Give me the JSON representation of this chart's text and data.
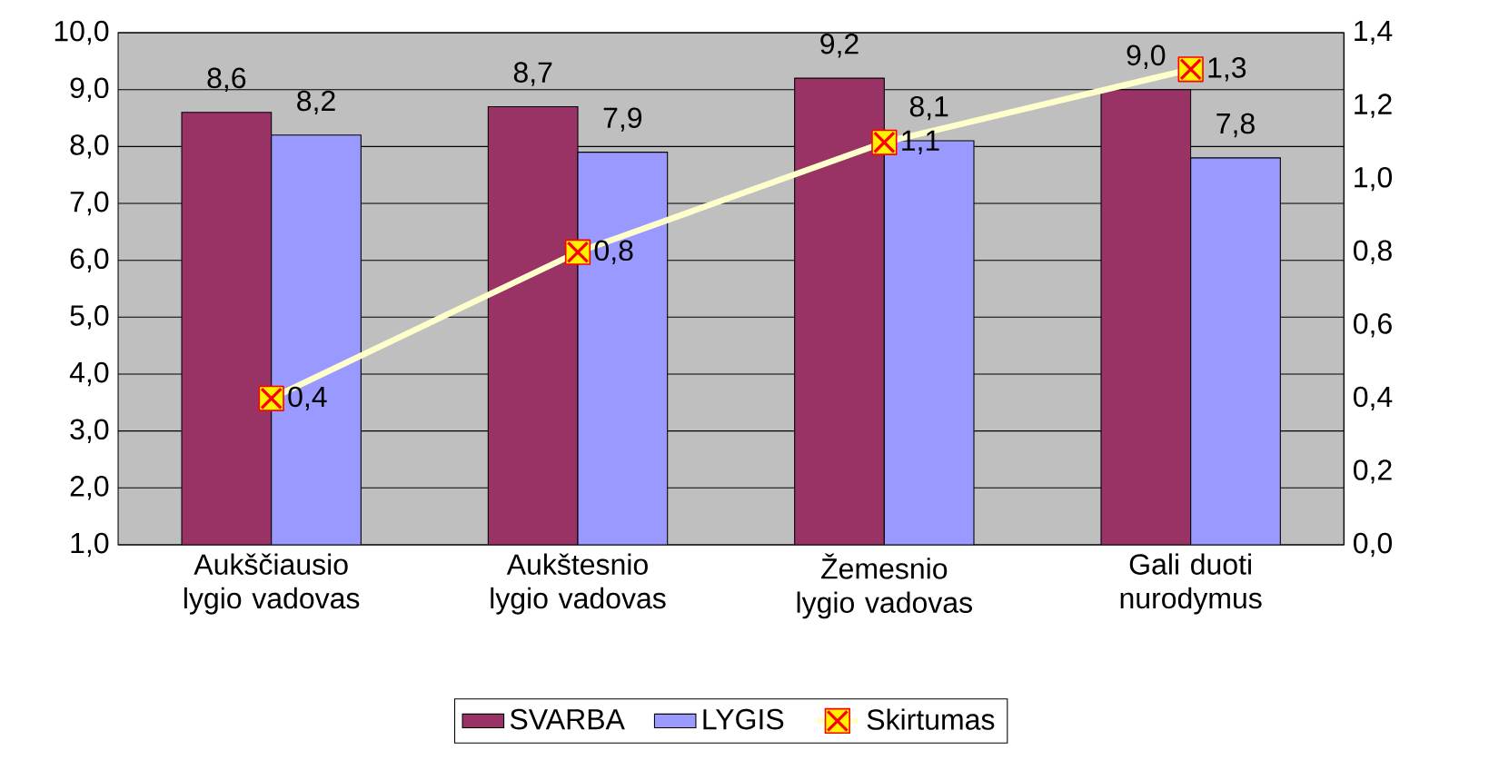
{
  "chart_data": {
    "type": "bar",
    "categories": [
      "Aukščiausio lygio vadovas",
      "Aukštesnio lygio vadovas",
      "Žemesnio lygio vadovas",
      "Gali duoti nurodymus"
    ],
    "series": [
      {
        "name": "SVARBA",
        "color": "#993366",
        "values": [
          8.6,
          8.7,
          9.2,
          9.0
        ],
        "value_labels": [
          "8,6",
          "8,7",
          "9,2",
          "9,0"
        ]
      },
      {
        "name": "LYGIS",
        "color": "#9999ff",
        "values": [
          8.2,
          7.9,
          8.1,
          7.8
        ],
        "value_labels": [
          "8,2",
          "7,9",
          "8,1",
          "7,8"
        ]
      },
      {
        "name": "Skirtumas",
        "type": "line",
        "axis": "y2",
        "color": "#ffffcc",
        "marker": "square",
        "values": [
          0.4,
          0.8,
          1.1,
          1.3
        ],
        "value_labels": [
          "0,4",
          "0,8",
          "1,1",
          "1,3"
        ]
      }
    ],
    "ylim": [
      1.0,
      10.0
    ],
    "yticks": [
      {
        "value": 1.0,
        "label": "1,0"
      },
      {
        "value": 2.0,
        "label": "2,0"
      },
      {
        "value": 3.0,
        "label": "3,0"
      },
      {
        "value": 4.0,
        "label": "4,0"
      },
      {
        "value": 5.0,
        "label": "5,0"
      },
      {
        "value": 6.0,
        "label": "6,0"
      },
      {
        "value": 7.0,
        "label": "7,0"
      },
      {
        "value": 8.0,
        "label": "8,0"
      },
      {
        "value": 9.0,
        "label": "9,0"
      },
      {
        "value": 10.0,
        "label": "10,0"
      }
    ],
    "y2lim": [
      0.0,
      1.4
    ],
    "y2ticks": [
      {
        "value": 0.0,
        "label": "0,0"
      },
      {
        "value": 0.2,
        "label": "0,2"
      },
      {
        "value": 0.4,
        "label": "0,4"
      },
      {
        "value": 0.6,
        "label": "0,6"
      },
      {
        "value": 0.8,
        "label": "0,8"
      },
      {
        "value": 1.0,
        "label": "1,0"
      },
      {
        "value": 1.2,
        "label": "1,2"
      },
      {
        "value": 1.4,
        "label": "1,4"
      }
    ],
    "grid": "y",
    "legend": "bottom"
  }
}
